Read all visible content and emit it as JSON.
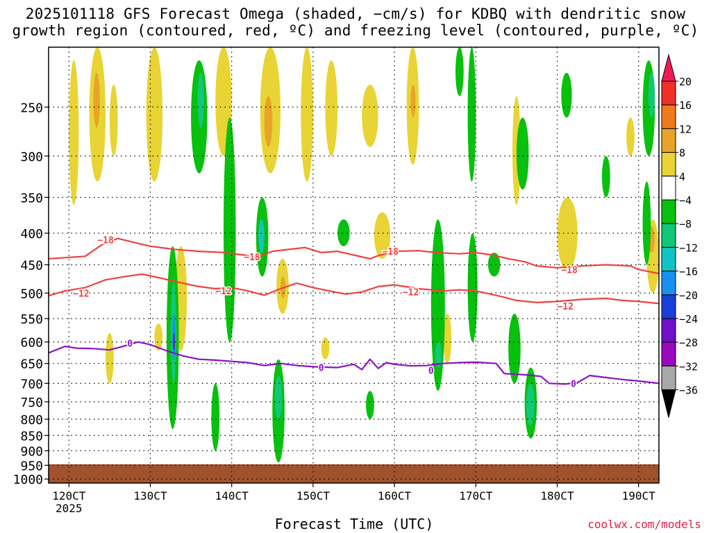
{
  "page": {
    "title_line1": "2025101118 GFS Forecast Omega (shaded, −cm/s) for KDBQ with dendritic snow",
    "title_line2": "growth region (contoured, red, ºC) and freezing level (contoured, purple, ºC)",
    "credit": "coolwx.com/models"
  },
  "chart_data": {
    "type": "heatmap",
    "title": "2025101118 GFS Forecast Omega (shaded, −cm/s) for KDBQ with dendritic snow growth region (contoured, red, ºC) and freezing level (contoured, purple, ºC)",
    "xlabel": "Forecast Time (UTC)",
    "ylabel": "",
    "x_tick_labels": [
      "120CT",
      "130CT",
      "140CT",
      "150CT",
      "160CT",
      "170CT",
      "180CT",
      "190CT"
    ],
    "x_tick_day": [
      12,
      13,
      14,
      15,
      16,
      17,
      18,
      19
    ],
    "x_sub_label": "2025",
    "xlim_day": [
      11.75,
      19.25
    ],
    "y_ticks": [
      250,
      300,
      350,
      400,
      450,
      500,
      550,
      600,
      650,
      700,
      750,
      800,
      850,
      900,
      950,
      1000
    ],
    "ylim": [
      200,
      1015
    ],
    "y_scale": "log",
    "grid": true,
    "colorbar": {
      "labels": [
        "20",
        "16",
        "12",
        "8",
        "4",
        "−4",
        "−8",
        "−12",
        "−16",
        "−20",
        "−24",
        "−28",
        "−32",
        "−36"
      ],
      "colors": [
        "#ee1c50",
        "#f03028",
        "#ee7a1e",
        "#e8a428",
        "#e8d434",
        "#ffffff",
        "#08c00e",
        "#10c878",
        "#10c4c4",
        "#1890f0",
        "#1840d8",
        "#7010c8",
        "#9a08c0",
        "#a8a8a8",
        "#000000"
      ]
    },
    "contours": [
      {
        "label": "−18",
        "color": "#ee4040",
        "label_points": [
          [
            12.45,
            410
          ],
          [
            14.25,
            437
          ],
          [
            15.95,
            428
          ],
          [
            18.15,
            458
          ]
        ],
        "points": [
          [
            11.75,
            440
          ],
          [
            12.2,
            436
          ],
          [
            12.4,
            418
          ],
          [
            12.6,
            408
          ],
          [
            12.8,
            414
          ],
          [
            13.0,
            420
          ],
          [
            13.3,
            425
          ],
          [
            13.6,
            428
          ],
          [
            13.9,
            430
          ],
          [
            14.15,
            434
          ],
          [
            14.3,
            438
          ],
          [
            14.5,
            428
          ],
          [
            14.7,
            425
          ],
          [
            14.9,
            422
          ],
          [
            15.1,
            430
          ],
          [
            15.3,
            428
          ],
          [
            15.5,
            434
          ],
          [
            15.7,
            440
          ],
          [
            15.8,
            435
          ],
          [
            16.0,
            428
          ],
          [
            16.3,
            427
          ],
          [
            16.5,
            430
          ],
          [
            16.8,
            432
          ],
          [
            17.0,
            430
          ],
          [
            17.2,
            434
          ],
          [
            17.4,
            440
          ],
          [
            17.6,
            445
          ],
          [
            17.75,
            452
          ],
          [
            18.0,
            455
          ],
          [
            18.3,
            452
          ],
          [
            18.6,
            450
          ],
          [
            18.9,
            452
          ],
          [
            19.0,
            458
          ],
          [
            19.25,
            465
          ]
        ]
      },
      {
        "label": "−12",
        "color": "#ee4040",
        "label_points": [
          [
            12.15,
            500
          ],
          [
            13.9,
            496
          ],
          [
            16.2,
            498
          ],
          [
            18.1,
            525
          ]
        ],
        "points": [
          [
            11.75,
            505
          ],
          [
            11.95,
            496
          ],
          [
            12.2,
            490
          ],
          [
            12.45,
            476
          ],
          [
            12.7,
            470
          ],
          [
            12.9,
            466
          ],
          [
            13.1,
            472
          ],
          [
            13.4,
            482
          ],
          [
            13.6,
            488
          ],
          [
            13.8,
            492
          ],
          [
            14.0,
            490
          ],
          [
            14.2,
            496
          ],
          [
            14.4,
            504
          ],
          [
            14.6,
            492
          ],
          [
            14.8,
            482
          ],
          [
            15.0,
            490
          ],
          [
            15.2,
            496
          ],
          [
            15.4,
            502
          ],
          [
            15.6,
            498
          ],
          [
            15.8,
            488
          ],
          [
            16.0,
            485
          ],
          [
            16.3,
            492
          ],
          [
            16.6,
            496
          ],
          [
            16.8,
            494
          ],
          [
            17.0,
            496
          ],
          [
            17.3,
            506
          ],
          [
            17.5,
            514
          ],
          [
            17.75,
            518
          ],
          [
            18.0,
            516
          ],
          [
            18.3,
            512
          ],
          [
            18.6,
            510
          ],
          [
            18.8,
            514
          ],
          [
            19.0,
            516
          ],
          [
            19.25,
            520
          ]
        ]
      },
      {
        "label": "0",
        "color": "#8a10c8",
        "label_points": [
          [
            12.75,
            603
          ],
          [
            15.1,
            660
          ],
          [
            16.45,
            667
          ],
          [
            18.2,
            700
          ]
        ],
        "points": [
          [
            11.75,
            625
          ],
          [
            11.95,
            610
          ],
          [
            12.1,
            614
          ],
          [
            12.3,
            615
          ],
          [
            12.5,
            618
          ],
          [
            12.7,
            608
          ],
          [
            12.85,
            600
          ],
          [
            13.0,
            606
          ],
          [
            13.2,
            620
          ],
          [
            13.4,
            632
          ],
          [
            13.6,
            640
          ],
          [
            13.8,
            642
          ],
          [
            14.0,
            645
          ],
          [
            14.2,
            648
          ],
          [
            14.4,
            655
          ],
          [
            14.6,
            650
          ],
          [
            14.8,
            655
          ],
          [
            15.0,
            658
          ],
          [
            15.3,
            660
          ],
          [
            15.5,
            652
          ],
          [
            15.6,
            665
          ],
          [
            15.7,
            640
          ],
          [
            15.8,
            662
          ],
          [
            15.9,
            648
          ],
          [
            16.0,
            652
          ],
          [
            16.2,
            656
          ],
          [
            16.4,
            655
          ],
          [
            16.6,
            650
          ],
          [
            16.8,
            648
          ],
          [
            17.0,
            647
          ],
          [
            17.25,
            650
          ],
          [
            17.35,
            675
          ],
          [
            17.6,
            678
          ],
          [
            17.8,
            682
          ],
          [
            17.9,
            700
          ],
          [
            18.1,
            702
          ],
          [
            18.25,
            698
          ],
          [
            18.4,
            680
          ],
          [
            18.6,
            685
          ],
          [
            18.8,
            690
          ],
          [
            19.0,
            694
          ],
          [
            19.25,
            700
          ]
        ]
      }
    ]
  }
}
